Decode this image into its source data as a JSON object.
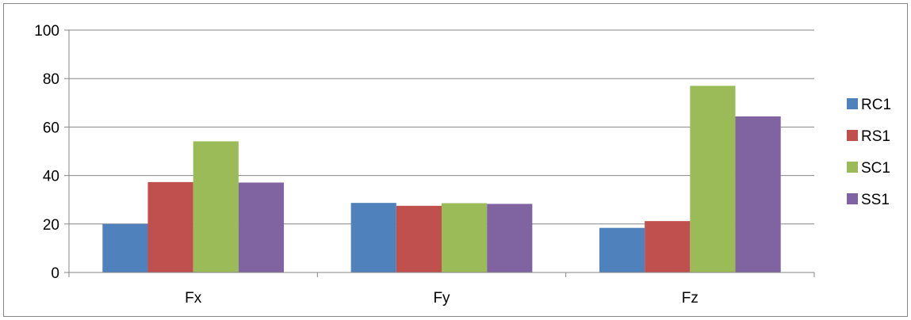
{
  "chart_data": {
    "type": "bar",
    "categories": [
      "Fx",
      "Fy",
      "Fz"
    ],
    "series": [
      {
        "name": "RC1",
        "color": "#4F81BD",
        "values": [
          20,
          28.7,
          18.4
        ]
      },
      {
        "name": "RS1",
        "color": "#C0504D",
        "values": [
          37.3,
          27.5,
          21.2
        ]
      },
      {
        "name": "SC1",
        "color": "#9BBB59",
        "values": [
          54.1,
          28.6,
          77
        ]
      },
      {
        "name": "SS1",
        "color": "#8064A2",
        "values": [
          37.1,
          28.3,
          64.4
        ]
      }
    ],
    "ylim": [
      0,
      100
    ],
    "yticks": [
      0,
      20,
      40,
      60,
      80,
      100
    ],
    "title": "",
    "xlabel": "",
    "ylabel": "",
    "grid": true,
    "legend": "right"
  }
}
